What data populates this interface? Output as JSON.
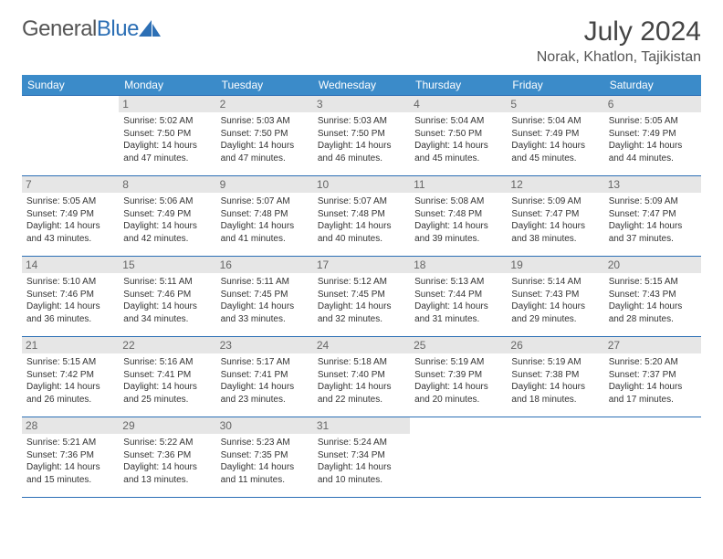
{
  "brand": {
    "prefix": "General",
    "suffix": "Blue"
  },
  "title": "July 2024",
  "location": "Norak, Khatlon, Tajikistan",
  "weekday_labels": [
    "Sunday",
    "Monday",
    "Tuesday",
    "Wednesday",
    "Thursday",
    "Friday",
    "Saturday"
  ],
  "colors": {
    "header_bg": "#3b8bc9",
    "header_text": "#ffffff",
    "border": "#2c6fb5",
    "daynum_bg": "#e6e6e6",
    "body_text": "#333333",
    "brand_grey": "#555555",
    "brand_blue": "#2c6fb5"
  },
  "typography": {
    "title_fontsize": 30,
    "location_fontsize": 16,
    "header_fontsize": 12,
    "daynum_fontsize": 12,
    "info_fontsize": 10
  },
  "first_weekday_index": 1,
  "days": [
    {
      "n": 1,
      "sunrise": "5:02 AM",
      "sunset": "7:50 PM",
      "daylight": "14 hours and 47 minutes."
    },
    {
      "n": 2,
      "sunrise": "5:03 AM",
      "sunset": "7:50 PM",
      "daylight": "14 hours and 47 minutes."
    },
    {
      "n": 3,
      "sunrise": "5:03 AM",
      "sunset": "7:50 PM",
      "daylight": "14 hours and 46 minutes."
    },
    {
      "n": 4,
      "sunrise": "5:04 AM",
      "sunset": "7:50 PM",
      "daylight": "14 hours and 45 minutes."
    },
    {
      "n": 5,
      "sunrise": "5:04 AM",
      "sunset": "7:49 PM",
      "daylight": "14 hours and 45 minutes."
    },
    {
      "n": 6,
      "sunrise": "5:05 AM",
      "sunset": "7:49 PM",
      "daylight": "14 hours and 44 minutes."
    },
    {
      "n": 7,
      "sunrise": "5:05 AM",
      "sunset": "7:49 PM",
      "daylight": "14 hours and 43 minutes."
    },
    {
      "n": 8,
      "sunrise": "5:06 AM",
      "sunset": "7:49 PM",
      "daylight": "14 hours and 42 minutes."
    },
    {
      "n": 9,
      "sunrise": "5:07 AM",
      "sunset": "7:48 PM",
      "daylight": "14 hours and 41 minutes."
    },
    {
      "n": 10,
      "sunrise": "5:07 AM",
      "sunset": "7:48 PM",
      "daylight": "14 hours and 40 minutes."
    },
    {
      "n": 11,
      "sunrise": "5:08 AM",
      "sunset": "7:48 PM",
      "daylight": "14 hours and 39 minutes."
    },
    {
      "n": 12,
      "sunrise": "5:09 AM",
      "sunset": "7:47 PM",
      "daylight": "14 hours and 38 minutes."
    },
    {
      "n": 13,
      "sunrise": "5:09 AM",
      "sunset": "7:47 PM",
      "daylight": "14 hours and 37 minutes."
    },
    {
      "n": 14,
      "sunrise": "5:10 AM",
      "sunset": "7:46 PM",
      "daylight": "14 hours and 36 minutes."
    },
    {
      "n": 15,
      "sunrise": "5:11 AM",
      "sunset": "7:46 PM",
      "daylight": "14 hours and 34 minutes."
    },
    {
      "n": 16,
      "sunrise": "5:11 AM",
      "sunset": "7:45 PM",
      "daylight": "14 hours and 33 minutes."
    },
    {
      "n": 17,
      "sunrise": "5:12 AM",
      "sunset": "7:45 PM",
      "daylight": "14 hours and 32 minutes."
    },
    {
      "n": 18,
      "sunrise": "5:13 AM",
      "sunset": "7:44 PM",
      "daylight": "14 hours and 31 minutes."
    },
    {
      "n": 19,
      "sunrise": "5:14 AM",
      "sunset": "7:43 PM",
      "daylight": "14 hours and 29 minutes."
    },
    {
      "n": 20,
      "sunrise": "5:15 AM",
      "sunset": "7:43 PM",
      "daylight": "14 hours and 28 minutes."
    },
    {
      "n": 21,
      "sunrise": "5:15 AM",
      "sunset": "7:42 PM",
      "daylight": "14 hours and 26 minutes."
    },
    {
      "n": 22,
      "sunrise": "5:16 AM",
      "sunset": "7:41 PM",
      "daylight": "14 hours and 25 minutes."
    },
    {
      "n": 23,
      "sunrise": "5:17 AM",
      "sunset": "7:41 PM",
      "daylight": "14 hours and 23 minutes."
    },
    {
      "n": 24,
      "sunrise": "5:18 AM",
      "sunset": "7:40 PM",
      "daylight": "14 hours and 22 minutes."
    },
    {
      "n": 25,
      "sunrise": "5:19 AM",
      "sunset": "7:39 PM",
      "daylight": "14 hours and 20 minutes."
    },
    {
      "n": 26,
      "sunrise": "5:19 AM",
      "sunset": "7:38 PM",
      "daylight": "14 hours and 18 minutes."
    },
    {
      "n": 27,
      "sunrise": "5:20 AM",
      "sunset": "7:37 PM",
      "daylight": "14 hours and 17 minutes."
    },
    {
      "n": 28,
      "sunrise": "5:21 AM",
      "sunset": "7:36 PM",
      "daylight": "14 hours and 15 minutes."
    },
    {
      "n": 29,
      "sunrise": "5:22 AM",
      "sunset": "7:36 PM",
      "daylight": "14 hours and 13 minutes."
    },
    {
      "n": 30,
      "sunrise": "5:23 AM",
      "sunset": "7:35 PM",
      "daylight": "14 hours and 11 minutes."
    },
    {
      "n": 31,
      "sunrise": "5:24 AM",
      "sunset": "7:34 PM",
      "daylight": "14 hours and 10 minutes."
    }
  ],
  "labels": {
    "sunrise": "Sunrise:",
    "sunset": "Sunset:",
    "daylight": "Daylight:"
  }
}
